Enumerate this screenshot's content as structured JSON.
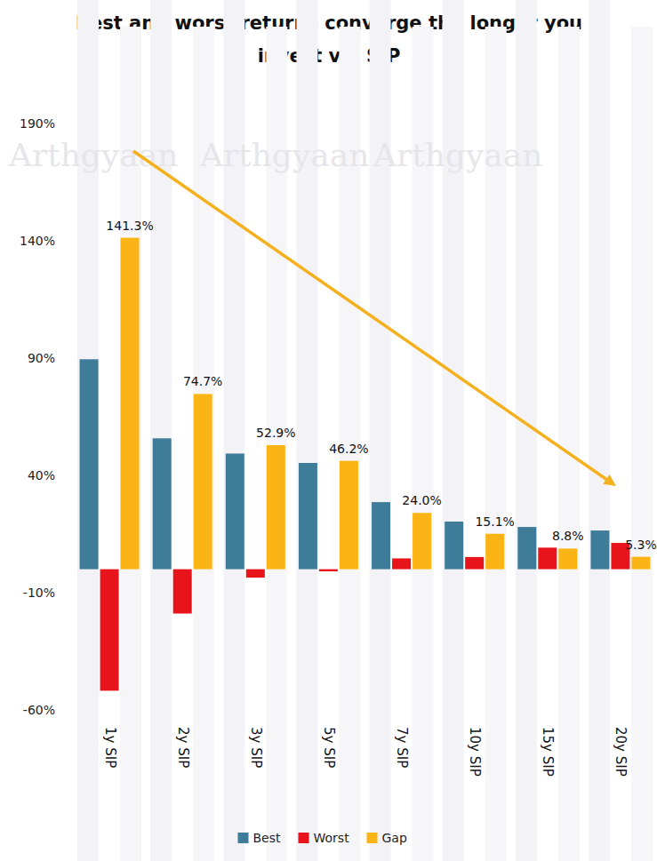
{
  "chart_data": {
    "type": "bar",
    "title": "Best and worst returns converge the longer you invest via SIP",
    "watermark": "Arthgyaan",
    "categories": [
      "1y SIP",
      "2y SIP",
      "3y SIP",
      "5y SIP",
      "7y SIP",
      "10y SIP",
      "15y SIP",
      "20y SIP"
    ],
    "series": [
      {
        "name": "Best",
        "color": "#3f7c99",
        "values": [
          89.5,
          55.8,
          49.3,
          45.3,
          28.6,
          20.3,
          18.0,
          16.5
        ]
      },
      {
        "name": "Worst",
        "color": "#e8141c",
        "values": [
          -51.8,
          -18.9,
          -3.6,
          -0.9,
          4.6,
          5.2,
          9.2,
          11.2
        ]
      },
      {
        "name": "Gap",
        "color": "#fbb415",
        "values": [
          141.3,
          74.7,
          52.9,
          46.2,
          24.0,
          15.1,
          8.8,
          5.3
        ],
        "data_labels": true,
        "value_labels": [
          "141.3%",
          "74.7%",
          "52.9%",
          "46.2%",
          "24.0%",
          "15.1%",
          "8.8%",
          "5.3%"
        ]
      }
    ],
    "ylim": [
      -60,
      190
    ],
    "yticks": [
      {
        "value": -60,
        "label": "-60%"
      },
      {
        "value": -10,
        "label": "-10%"
      },
      {
        "value": 40,
        "label": "40%"
      },
      {
        "value": 90,
        "label": "90%"
      },
      {
        "value": 140,
        "label": "140%"
      },
      {
        "value": 190,
        "label": "190%"
      }
    ],
    "grid": false,
    "legend": "bottom"
  }
}
